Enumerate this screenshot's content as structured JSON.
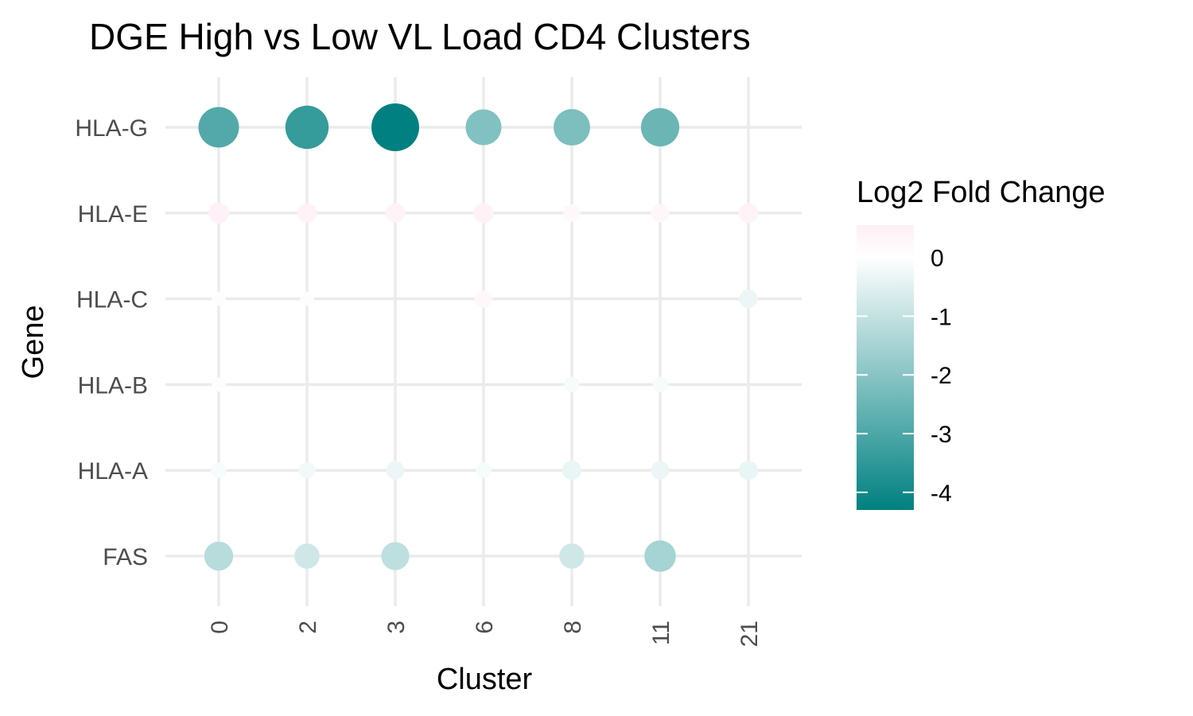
{
  "chart_data": {
    "type": "dot",
    "title": "DGE High vs Low VL Load CD4 Clusters",
    "xlabel": "Cluster",
    "ylabel": "Gene",
    "categories_x": [
      "0",
      "2",
      "3",
      "6",
      "8",
      "11",
      "21"
    ],
    "categories_y": [
      "FAS",
      "HLA-A",
      "HLA-B",
      "HLA-C",
      "HLA-E",
      "HLA-G"
    ],
    "grid": true,
    "size_encodes": "magnitude of Log2 Fold Change",
    "legend": {
      "title": "Log2 Fold Change",
      "position": "right",
      "ticks": [
        0,
        -1,
        -2,
        -3,
        -4
      ],
      "range": [
        -4.3,
        0.55
      ],
      "color_low": "#008080",
      "color_mid": "#ffffff",
      "color_high": "#ffeef5"
    },
    "points": [
      {
        "gene": "HLA-G",
        "cluster": "0",
        "value": -2.9
      },
      {
        "gene": "HLA-G",
        "cluster": "2",
        "value": -3.4
      },
      {
        "gene": "HLA-G",
        "cluster": "3",
        "value": -4.3
      },
      {
        "gene": "HLA-G",
        "cluster": "6",
        "value": -2.1
      },
      {
        "gene": "HLA-G",
        "cluster": "8",
        "value": -2.2
      },
      {
        "gene": "HLA-G",
        "cluster": "11",
        "value": -2.5
      },
      {
        "gene": "HLA-E",
        "cluster": "0",
        "value": 0.45
      },
      {
        "gene": "HLA-E",
        "cluster": "2",
        "value": 0.38
      },
      {
        "gene": "HLA-E",
        "cluster": "3",
        "value": 0.38
      },
      {
        "gene": "HLA-E",
        "cluster": "6",
        "value": 0.42
      },
      {
        "gene": "HLA-E",
        "cluster": "8",
        "value": 0.22
      },
      {
        "gene": "HLA-E",
        "cluster": "11",
        "value": 0.28
      },
      {
        "gene": "HLA-E",
        "cluster": "21",
        "value": 0.4
      },
      {
        "gene": "HLA-C",
        "cluster": "0",
        "value": 0.1
      },
      {
        "gene": "HLA-C",
        "cluster": "2",
        "value": 0.1
      },
      {
        "gene": "HLA-C",
        "cluster": "6",
        "value": 0.25
      },
      {
        "gene": "HLA-C",
        "cluster": "21",
        "value": -0.3
      },
      {
        "gene": "HLA-B",
        "cluster": "0",
        "value": 0.1
      },
      {
        "gene": "HLA-B",
        "cluster": "8",
        "value": -0.15
      },
      {
        "gene": "HLA-B",
        "cluster": "11",
        "value": -0.15
      },
      {
        "gene": "HLA-A",
        "cluster": "0",
        "value": -0.15
      },
      {
        "gene": "HLA-A",
        "cluster": "2",
        "value": -0.2
      },
      {
        "gene": "HLA-A",
        "cluster": "3",
        "value": -0.3
      },
      {
        "gene": "HLA-A",
        "cluster": "6",
        "value": -0.15
      },
      {
        "gene": "HLA-A",
        "cluster": "8",
        "value": -0.35
      },
      {
        "gene": "HLA-A",
        "cluster": "11",
        "value": -0.3
      },
      {
        "gene": "HLA-A",
        "cluster": "21",
        "value": -0.35
      },
      {
        "gene": "FAS",
        "cluster": "0",
        "value": -1.2
      },
      {
        "gene": "FAS",
        "cluster": "2",
        "value": -0.8
      },
      {
        "gene": "FAS",
        "cluster": "3",
        "value": -1.1
      },
      {
        "gene": "FAS",
        "cluster": "8",
        "value": -0.8
      },
      {
        "gene": "FAS",
        "cluster": "11",
        "value": -1.5
      }
    ]
  }
}
